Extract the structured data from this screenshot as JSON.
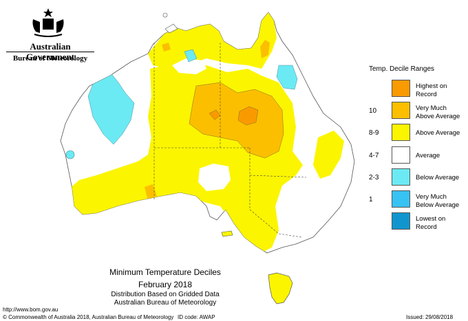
{
  "header": {
    "government": "Australian Government",
    "bureau": "Bureau of Meteorology"
  },
  "legend": {
    "title": "Temp. Decile Ranges",
    "items": [
      {
        "decile": "",
        "label_line1": "Highest on",
        "label_line2": "Record",
        "color": "#F99A00"
      },
      {
        "decile": "10",
        "label_line1": "Very Much",
        "label_line2": "Above Average",
        "color": "#FBBF00"
      },
      {
        "decile": "8-9",
        "label_line1": "Above Average",
        "label_line2": "",
        "color": "#FBF500"
      },
      {
        "decile": "4-7",
        "label_line1": "Average",
        "label_line2": "",
        "color": "#FFFFFF"
      },
      {
        "decile": "2-3",
        "label_line1": "Below Average",
        "label_line2": "",
        "color": "#6BEAF3"
      },
      {
        "decile": "1",
        "label_line1": "Very Much",
        "label_line2": "Below Average",
        "color": "#36C2F3"
      },
      {
        "decile": "",
        "label_line1": "Lowest on",
        "label_line2": "Record",
        "color": "#1195CE"
      }
    ]
  },
  "map_title": {
    "line1": "Minimum Temperature Deciles",
    "line2": "February 2018",
    "line3": "Distribution Based on Gridded Data",
    "line4": "Australian Bureau of Meteorology"
  },
  "footer": {
    "url": "http://www.bom.gov.au",
    "copyright": "© Commonwealth of Australia 2018, Australian Bureau of Meteorology",
    "id_code": "ID code: AWAP",
    "issued": "Issued: 29/08/2018"
  },
  "icons": {
    "crest": "coat-of-arms-icon"
  }
}
